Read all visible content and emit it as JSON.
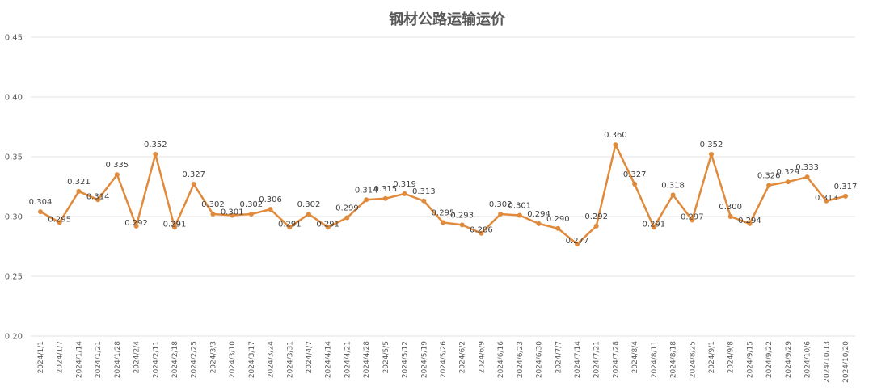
{
  "chart_data": {
    "type": "line",
    "title": "钢材公路运输运价",
    "xlabel": "",
    "ylabel": "",
    "ylim": [
      0.2,
      0.45
    ],
    "yticks": [
      "0.20",
      "0.25",
      "0.30",
      "0.35",
      "0.40",
      "0.45"
    ],
    "grid": true,
    "legend": "none",
    "line_color": "#e08a3c",
    "categories": [
      "2024/1/1",
      "2024/1/7",
      "2024/1/14",
      "2024/1/21",
      "2024/1/28",
      "2024/2/4",
      "2024/2/11",
      "2024/2/18",
      "2024/2/25",
      "2024/3/3",
      "2024/3/10",
      "2024/3/17",
      "2024/3/24",
      "2024/3/31",
      "2024/4/7",
      "2024/4/14",
      "2024/4/21",
      "2024/4/28",
      "2024/5/5",
      "2024/5/12",
      "2024/5/19",
      "2024/5/26",
      "2024/6/2",
      "2024/6/9",
      "2024/6/16",
      "2024/6/23",
      "2024/6/30",
      "2024/7/7",
      "2024/7/14",
      "2024/7/21",
      "2024/7/28",
      "2024/8/4",
      "2024/8/11",
      "2024/8/18",
      "2024/8/25",
      "2024/9/1",
      "2024/9/8",
      "2024/9/15",
      "2024/9/22",
      "2024/9/29",
      "2024/10/6",
      "2024/10/13",
      "2024/10/20"
    ],
    "values": [
      0.304,
      0.295,
      0.321,
      0.314,
      0.335,
      0.292,
      0.352,
      0.291,
      0.327,
      0.302,
      0.301,
      0.302,
      0.306,
      0.291,
      0.302,
      0.291,
      0.299,
      0.314,
      0.315,
      0.319,
      0.313,
      0.295,
      0.293,
      0.286,
      0.302,
      0.301,
      0.294,
      0.29,
      0.277,
      0.292,
      0.36,
      0.327,
      0.291,
      0.318,
      0.297,
      0.352,
      0.3,
      0.294,
      0.326,
      0.329,
      0.333,
      0.313,
      0.317
    ],
    "data_labels": [
      "0.304",
      "0.295",
      "0.321",
      "0.314",
      "0.335",
      "0.292",
      "0.352",
      "0.291",
      "0.327",
      "0.302",
      "0.301",
      "0.302",
      "0.306",
      "0.291",
      "0.302",
      "0.291",
      "0.299",
      "0.314",
      "0.315",
      "0.319",
      "0.313",
      "0.295",
      "0.293",
      "0.286",
      "0.302",
      "0.301",
      "0.294",
      "0.290",
      "0.277",
      "0.292",
      "0.360",
      "0.327",
      "0.291",
      "0.318",
      "0.297",
      "0.352",
      "0.300",
      "0.294",
      "0.326",
      "0.329",
      "0.333",
      "0.313",
      "0.317"
    ]
  }
}
